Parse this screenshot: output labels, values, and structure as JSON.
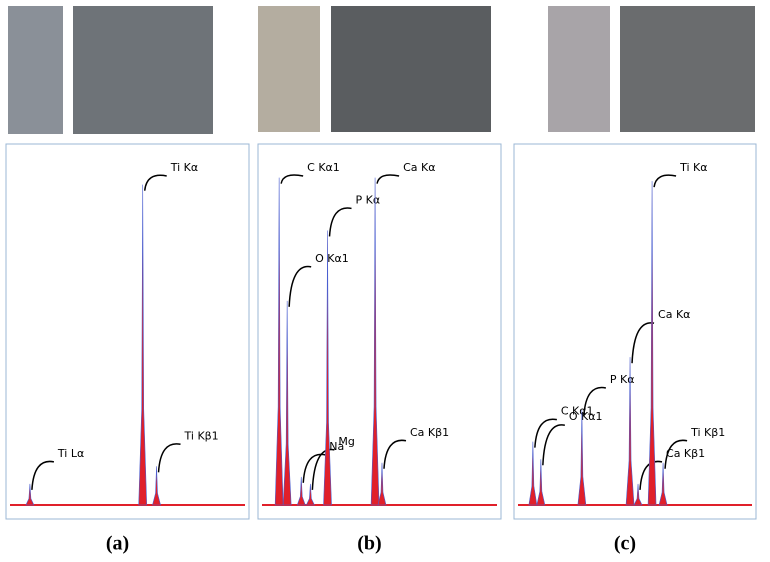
{
  "chart_data": [
    {
      "type": "area",
      "caption": "(a)",
      "color": "#e0202a",
      "xlim": [
        0,
        8.5
      ],
      "ylim": [
        0,
        100
      ],
      "peaks": [
        {
          "label": "Ti Lα",
          "x": 0.72,
          "y": 6
        },
        {
          "label": "Ti Kα",
          "x": 4.8,
          "y": 91
        },
        {
          "label": "Ti Kβ1",
          "x": 5.3,
          "y": 11
        }
      ]
    },
    {
      "type": "area",
      "caption": "(b)",
      "color": "#e0202a",
      "xlim": [
        0,
        8.5
      ],
      "ylim": [
        0,
        100
      ],
      "peaks": [
        {
          "label": "C Kα1",
          "x": 0.62,
          "y": 93
        },
        {
          "label": "O Kα1",
          "x": 0.91,
          "y": 58
        },
        {
          "label": "Na",
          "x": 1.42,
          "y": 8
        },
        {
          "label": "Mg",
          "x": 1.75,
          "y": 6
        },
        {
          "label": "P Kα",
          "x": 2.37,
          "y": 78
        },
        {
          "label": "Ca Kα",
          "x": 4.09,
          "y": 93
        },
        {
          "label": "Ca Kβ1",
          "x": 4.34,
          "y": 12
        }
      ]
    },
    {
      "type": "area",
      "caption": "(c)",
      "color": "#e0202a",
      "xlim": [
        0,
        8.5
      ],
      "ylim": [
        0,
        100
      ],
      "peaks": [
        {
          "label": "C Kα1",
          "x": 0.54,
          "y": 18
        },
        {
          "label": "O Kα1",
          "x": 0.83,
          "y": 13
        },
        {
          "label": "P Kα",
          "x": 2.32,
          "y": 27
        },
        {
          "label": "Ca Kα",
          "x": 4.07,
          "y": 42
        },
        {
          "label": "Ca Kβ1",
          "x": 4.36,
          "y": 6
        },
        {
          "label": "Ti Kα",
          "x": 4.87,
          "y": 92
        },
        {
          "label": "Ti Kβ1",
          "x": 5.27,
          "y": 12
        }
      ]
    }
  ]
}
